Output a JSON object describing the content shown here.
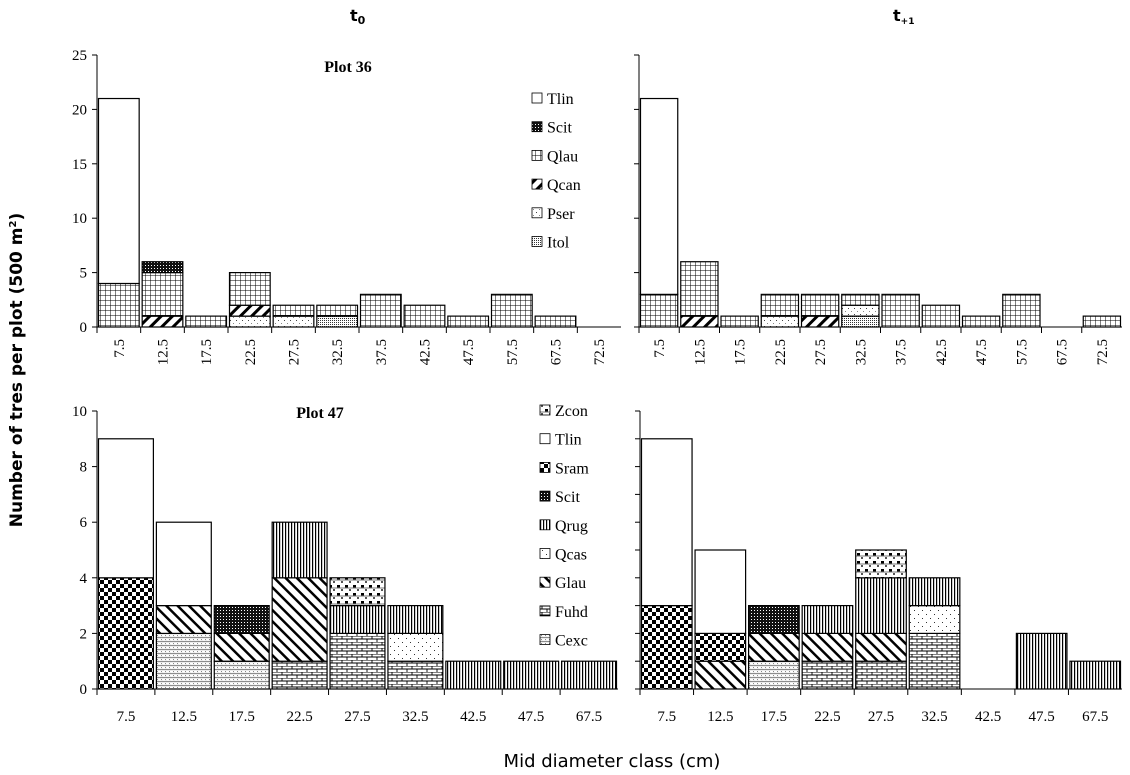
{
  "figure": {
    "col_titles": [
      {
        "main": "t",
        "sub": "0"
      },
      {
        "main": "t",
        "sub": "+1"
      }
    ],
    "ylabel_pre": "Number of tres per plot (500 m",
    "ylabel_sup": "2",
    "ylabel_post": ")",
    "xlabel": "Mid diameter class (cm)"
  },
  "patterns": {
    "Tlin": "empty",
    "Scit": "dense-dark-dots",
    "Qlau": "grid",
    "Qcan": "forward-diagonal",
    "Pser": "sparse-dashed-dots",
    "Itol": "fine-dots",
    "Zcon": "diamond-check",
    "Sram": "checkerboard",
    "Qrug": "vertical-lines",
    "Qcas": "sparse-dots",
    "Glau": "back-diagonal",
    "Fuhd": "brick",
    "Cexc": "wavy-dots"
  },
  "chart_data": [
    {
      "type": "bar",
      "stacked": true,
      "panel": "top-left",
      "annotation": "Plot 36",
      "ylim": [
        0,
        25
      ],
      "yticks": [
        0,
        5,
        10,
        15,
        20,
        25
      ],
      "grid": false,
      "legend": "top-right",
      "categories": [
        "7.5",
        "12.5",
        "17.5",
        "22.5",
        "27.5",
        "32.5",
        "37.5",
        "42.5",
        "47.5",
        "57.5",
        "67.5",
        "72.5"
      ],
      "legend_order": [
        "Tlin",
        "Scit",
        "Qlau",
        "Qcan",
        "Pser",
        "Itol"
      ],
      "series": [
        {
          "name": "Itol",
          "values": [
            0,
            0,
            0,
            0,
            0,
            1,
            0,
            0,
            0,
            0,
            0,
            0
          ]
        },
        {
          "name": "Pser",
          "values": [
            0,
            0,
            0,
            1,
            1,
            0,
            0,
            0,
            0,
            0,
            0,
            0
          ]
        },
        {
          "name": "Qcan",
          "values": [
            0,
            1,
            0,
            1,
            0,
            0,
            0,
            0,
            0,
            0,
            0,
            0
          ]
        },
        {
          "name": "Qlau",
          "values": [
            4,
            4,
            1,
            3,
            1,
            1,
            3,
            2,
            1,
            3,
            1,
            0
          ]
        },
        {
          "name": "Scit",
          "values": [
            0,
            1,
            0,
            0,
            0,
            0,
            0,
            0,
            0,
            0,
            0,
            0
          ]
        },
        {
          "name": "Tlin",
          "values": [
            17,
            0,
            0,
            0,
            0,
            0,
            0,
            0,
            0,
            0,
            0,
            0
          ]
        }
      ]
    },
    {
      "type": "bar",
      "stacked": true,
      "panel": "top-right",
      "ylim": [
        0,
        25
      ],
      "grid": false,
      "categories": [
        "7.5",
        "12.5",
        "17.5",
        "22.5",
        "27.5",
        "32.5",
        "37.5",
        "42.5",
        "47.5",
        "57.5",
        "67.5",
        "72.5"
      ],
      "series": [
        {
          "name": "Itol",
          "values": [
            0,
            0,
            0,
            0,
            0,
            1,
            0,
            0,
            0,
            0,
            0,
            0
          ]
        },
        {
          "name": "Pser",
          "values": [
            0,
            0,
            0,
            1,
            0,
            1,
            0,
            0,
            0,
            0,
            0,
            0
          ]
        },
        {
          "name": "Qcan",
          "values": [
            0,
            1,
            0,
            0,
            1,
            0,
            0,
            0,
            0,
            0,
            0,
            0
          ]
        },
        {
          "name": "Qlau",
          "values": [
            3,
            5,
            1,
            2,
            2,
            1,
            3,
            2,
            1,
            3,
            0,
            1
          ]
        },
        {
          "name": "Scit",
          "values": [
            0,
            0,
            0,
            0,
            0,
            0,
            0,
            0,
            0,
            0,
            0,
            0
          ]
        },
        {
          "name": "Tlin",
          "values": [
            18,
            0,
            0,
            0,
            0,
            0,
            0,
            0,
            0,
            0,
            0,
            0
          ]
        }
      ]
    },
    {
      "type": "bar",
      "stacked": true,
      "panel": "bottom-left",
      "annotation": "Plot 47",
      "ylim": [
        0,
        10
      ],
      "yticks": [
        0,
        2,
        4,
        6,
        8,
        10
      ],
      "grid": false,
      "legend": "top-right",
      "categories": [
        "7.5",
        "12.5",
        "17.5",
        "22.5",
        "27.5",
        "32.5",
        "42.5",
        "47.5",
        "67.5"
      ],
      "legend_order": [
        "Zcon",
        "Tlin",
        "Sram",
        "Scit",
        "Qrug",
        "Qcas",
        "Glau",
        "Fuhd",
        "Cexc"
      ],
      "series": [
        {
          "name": "Cexc",
          "values": [
            0,
            2,
            1,
            0,
            0,
            0,
            0,
            0,
            0
          ]
        },
        {
          "name": "Fuhd",
          "values": [
            0,
            0,
            0,
            1,
            2,
            1,
            0,
            0,
            0
          ]
        },
        {
          "name": "Glau",
          "values": [
            0,
            1,
            1,
            3,
            0,
            0,
            0,
            0,
            0
          ]
        },
        {
          "name": "Qcas",
          "values": [
            0,
            0,
            0,
            0,
            0,
            1,
            0,
            0,
            0
          ]
        },
        {
          "name": "Qrug",
          "values": [
            0,
            0,
            0,
            2,
            1,
            1,
            1,
            1,
            1
          ]
        },
        {
          "name": "Scit",
          "values": [
            0,
            0,
            1,
            0,
            0,
            0,
            0,
            0,
            0
          ]
        },
        {
          "name": "Sram",
          "values": [
            4,
            0,
            0,
            0,
            0,
            0,
            0,
            0,
            0
          ]
        },
        {
          "name": "Tlin",
          "values": [
            5,
            3,
            0,
            0,
            0,
            0,
            0,
            0,
            0
          ]
        },
        {
          "name": "Zcon",
          "values": [
            0,
            0,
            0,
            0,
            1,
            0,
            0,
            0,
            0
          ]
        }
      ]
    },
    {
      "type": "bar",
      "stacked": true,
      "panel": "bottom-right",
      "ylim": [
        0,
        10
      ],
      "grid": false,
      "categories": [
        "7.5",
        "12.5",
        "17.5",
        "22.5",
        "27.5",
        "32.5",
        "42.5",
        "47.5",
        "67.5"
      ],
      "series": [
        {
          "name": "Cexc",
          "values": [
            0,
            0,
            1,
            0,
            0,
            0,
            0,
            0,
            0
          ]
        },
        {
          "name": "Fuhd",
          "values": [
            0,
            0,
            0,
            1,
            1,
            2,
            0,
            0,
            0
          ]
        },
        {
          "name": "Glau",
          "values": [
            0,
            1,
            1,
            1,
            1,
            0,
            0,
            0,
            0
          ]
        },
        {
          "name": "Qcas",
          "values": [
            0,
            0,
            0,
            0,
            0,
            1,
            0,
            0,
            0
          ]
        },
        {
          "name": "Qrug",
          "values": [
            0,
            0,
            0,
            1,
            2,
            1,
            0,
            2,
            1
          ]
        },
        {
          "name": "Scit",
          "values": [
            0,
            0,
            1,
            0,
            0,
            0,
            0,
            0,
            0
          ]
        },
        {
          "name": "Sram",
          "values": [
            3,
            1,
            0,
            0,
            0,
            0,
            0,
            0,
            0
          ]
        },
        {
          "name": "Tlin",
          "values": [
            6,
            3,
            0,
            0,
            0,
            0,
            0,
            0,
            0
          ]
        },
        {
          "name": "Zcon",
          "values": [
            0,
            0,
            0,
            0,
            1,
            0,
            0,
            0,
            0
          ]
        }
      ]
    }
  ]
}
